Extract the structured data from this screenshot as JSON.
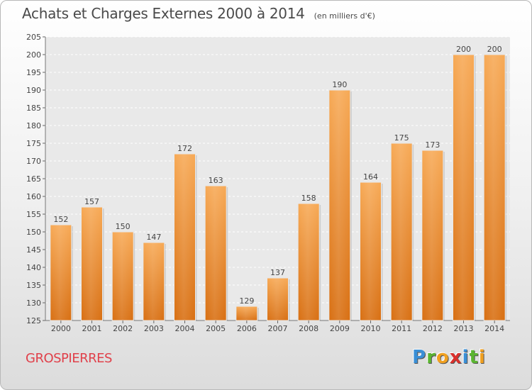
{
  "chart_data": {
    "type": "bar",
    "title": "Achats et Charges Externes 2000 à 2014",
    "unit": "(en milliers d'€)",
    "categories": [
      "2000",
      "2001",
      "2002",
      "2003",
      "2004",
      "2005",
      "2006",
      "2007",
      "2008",
      "2009",
      "2010",
      "2011",
      "2012",
      "2013",
      "2014"
    ],
    "values": [
      152,
      157,
      150,
      147,
      172,
      163,
      129,
      137,
      158,
      190,
      164,
      175,
      173,
      200,
      200
    ],
    "ylim": [
      125,
      205
    ],
    "yticks": [
      125,
      130,
      135,
      140,
      145,
      150,
      155,
      160,
      165,
      170,
      175,
      180,
      185,
      190,
      195,
      200,
      205
    ],
    "grid": true,
    "bar_color": "#f29a3c"
  },
  "commune": "GROSPIERRES",
  "logo": "Proxiti"
}
